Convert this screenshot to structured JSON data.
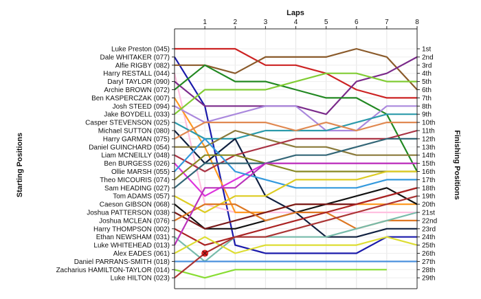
{
  "chart_data": {
    "type": "line",
    "title": "",
    "xlabel": "Laps",
    "ylabel_left": "Starting Positions",
    "ylabel_right": "Finishing Positions",
    "x": [
      0,
      1,
      2,
      3,
      4,
      5,
      6,
      7,
      8
    ],
    "x_tick_labels": [
      "1",
      "2",
      "3",
      "4",
      "5",
      "6",
      "7",
      "8"
    ],
    "y_reversed": true,
    "ylim": [
      1,
      29
    ],
    "grid": true,
    "finishing_labels": [
      "1st",
      "2nd",
      "3rd",
      "4th",
      "5th",
      "6th",
      "7th",
      "8th",
      "9th",
      "10th",
      "11th",
      "12th",
      "13th",
      "14th",
      "15th",
      "16th",
      "17th",
      "18th",
      "19th",
      "20th",
      "21st",
      "22nd",
      "23rd",
      "24th",
      "25th",
      "26th",
      "27th",
      "28th",
      "29th"
    ],
    "series": [
      {
        "name": "Luke Preston (045)",
        "color": "#cc2222",
        "values": [
          1,
          1,
          1,
          3,
          3,
          4,
          6,
          7,
          7
        ]
      },
      {
        "name": "Dale WHITAKER (077)",
        "color": "#1a1aaa",
        "values": [
          2,
          8,
          25,
          26,
          26,
          26,
          26,
          24,
          24
        ]
      },
      {
        "name": "Alfie RIGBY (082)",
        "color": "#8a5a2a",
        "values": [
          3,
          3,
          4,
          2,
          2,
          2,
          1,
          2,
          6
        ]
      },
      {
        "name": "Harry RESTALL (044)",
        "color": "#ffc0e0",
        "values": [
          4,
          20,
          21,
          21,
          21,
          21,
          21,
          21,
          21
        ]
      },
      {
        "name": "Daryl TAYLOR (090)",
        "color": "#7a2a8a",
        "values": [
          5,
          8,
          8,
          8,
          8,
          9,
          5,
          4,
          2
        ]
      },
      {
        "name": "Archie BROWN (072)",
        "color": "#228822",
        "values": [
          6,
          3,
          5,
          5,
          6,
          7,
          7,
          9,
          16
        ]
      },
      {
        "name": "Ben KASPERCZAK (007)",
        "color": "#ff9922",
        "values": [
          7,
          13,
          21,
          21,
          20,
          20,
          20,
          20,
          20
        ]
      },
      {
        "name": "Josh STEED (094)",
        "color": "#aa88dd",
        "values": [
          8,
          10,
          9,
          8,
          8,
          11,
          11,
          8,
          8
        ]
      },
      {
        "name": "Jake BOYDELL (033)",
        "color": "#80cc33",
        "values": [
          9,
          6,
          6,
          6,
          5,
          4,
          4,
          5,
          5
        ]
      },
      {
        "name": "Casper STEVENSON (025)",
        "color": "#2a9aaa",
        "values": [
          10,
          12,
          12,
          11,
          11,
          11,
          10,
          9,
          9
        ]
      },
      {
        "name": "Michael SUTTON (080)",
        "color": "#102040",
        "values": [
          11,
          15,
          12,
          19,
          21,
          24,
          24,
          23,
          23
        ]
      },
      {
        "name": "Harry GARMAN (075)",
        "color": "#e08850",
        "values": [
          12,
          10,
          10,
          10,
          11,
          10,
          11,
          10,
          10
        ]
      },
      {
        "name": "Daniel GUINCHARD (054)",
        "color": "#8a7a3a",
        "values": [
          13,
          13,
          11,
          12,
          13,
          13,
          14,
          14,
          14
        ]
      },
      {
        "name": "Liam MCNEILLY (048)",
        "color": "#aa3344",
        "values": [
          14,
          16,
          14,
          13,
          12,
          12,
          12,
          12,
          11
        ]
      },
      {
        "name": "Ben BURGESS (026)",
        "color": "#dd33dd",
        "values": [
          15,
          19,
          17,
          15,
          15,
          15,
          15,
          15,
          15
        ]
      },
      {
        "name": "Ollie MARSH (055)",
        "color": "#3399dd",
        "values": [
          16,
          12,
          16,
          17,
          18,
          18,
          18,
          17,
          17
        ]
      },
      {
        "name": "Theo MICOURIS (074)",
        "color": "#888822",
        "values": [
          17,
          14,
          14,
          15,
          16,
          16,
          16,
          16,
          16
        ]
      },
      {
        "name": "Sam HEADING (027)",
        "color": "#336677",
        "values": [
          18,
          15,
          15,
          15,
          14,
          14,
          13,
          12,
          12
        ]
      },
      {
        "name": "Tom ADAMS (057)",
        "color": "#ddcc22",
        "values": [
          19,
          21,
          19,
          19,
          17,
          17,
          17,
          16,
          16
        ]
      },
      {
        "name": "Caeson GIBSON (068)",
        "color": "#111111",
        "values": [
          20,
          23,
          23,
          22,
          21,
          20,
          19,
          18,
          20
        ]
      },
      {
        "name": "Joshua PATTERSON (038)",
        "color": "#7a1a1a",
        "values": [
          21,
          23,
          22,
          21,
          20,
          20,
          20,
          19,
          18
        ]
      },
      {
        "name": "Joshua MCLEAN (076)",
        "color": "#dd7722",
        "values": [
          22,
          20,
          20,
          22,
          21,
          21,
          23,
          22,
          22
        ]
      },
      {
        "name": "Harry THOMPSON (002)",
        "color": "#aa2222",
        "values": [
          23,
          25,
          24,
          23,
          22,
          21,
          20,
          19,
          18
        ]
      },
      {
        "name": "Ethan NEWSHAM (031)",
        "color": "#77bbaa",
        "values": [
          24,
          27,
          24,
          24,
          24,
          24,
          23,
          22,
          21
        ]
      },
      {
        "name": "Luke WHITEHEAD (013)",
        "color": "#bb33bb",
        "values": [
          25,
          18,
          18,
          15,
          15,
          15,
          15,
          15,
          15
        ]
      },
      {
        "name": "Alex EADES (061)",
        "color": "#dddd33",
        "values": [
          26,
          24,
          26,
          25,
          25,
          25,
          25,
          24,
          25
        ]
      },
      {
        "name": "Daniel PARRANS-SMITH (018)",
        "color": "#4a90dd",
        "values": [
          27,
          27,
          27,
          27,
          27,
          27,
          27,
          27,
          27
        ]
      },
      {
        "name": "Zacharius HAMILTON-TAYLOR (014)",
        "color": "#88dd33",
        "values": [
          28,
          29,
          28,
          28,
          28,
          28,
          28,
          28,
          null
        ]
      },
      {
        "name": "Luke HILTON (023)",
        "color": "#aa3333",
        "values": [
          29,
          26,
          24,
          24,
          23,
          22,
          21,
          20,
          19
        ]
      }
    ],
    "retirement_marker": {
      "lap": 1,
      "position": 26
    }
  }
}
